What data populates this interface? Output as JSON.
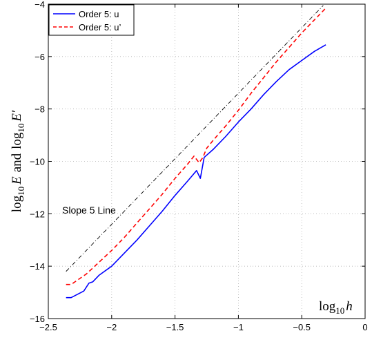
{
  "chart_data": {
    "type": "line",
    "title": "",
    "xlabel": {
      "base": "log",
      "sub": "10",
      "var": "h"
    },
    "ylabel": {
      "part1_base": "log",
      "part1_sub": "10",
      "part1_var": "E",
      "joiner": "and",
      "part2_base": "log",
      "part2_sub": "10",
      "part2_var": "E′"
    },
    "xlim": [
      -2.5,
      0
    ],
    "ylim": [
      -16,
      -4
    ],
    "x_ticks": [
      -2.5,
      -2,
      -1.5,
      -1,
      -0.5,
      0
    ],
    "x_tick_labels": [
      "−2.5",
      "−2",
      "−1.5",
      "−1",
      "−0.5",
      "0"
    ],
    "y_ticks": [
      -16,
      -14,
      -12,
      -10,
      -8,
      -6,
      -4
    ],
    "y_tick_labels": [
      "−16",
      "−14",
      "−12",
      "−10",
      "−8",
      "−6",
      "−4"
    ],
    "grid": true,
    "legend_position": "top-left",
    "series": [
      {
        "name": "Order 5: u",
        "color": "#0000ff",
        "style": "solid",
        "x": [
          -2.36,
          -2.32,
          -2.22,
          -2.18,
          -2.15,
          -2.1,
          -2.0,
          -1.9,
          -1.8,
          -1.7,
          -1.6,
          -1.5,
          -1.4,
          -1.33,
          -1.3,
          -1.27,
          -1.2,
          -1.1,
          -1.0,
          -0.9,
          -0.8,
          -0.7,
          -0.6,
          -0.5,
          -0.4,
          -0.31
        ],
        "y": [
          -15.2,
          -15.2,
          -14.95,
          -14.65,
          -14.6,
          -14.35,
          -14.0,
          -13.5,
          -13.0,
          -12.45,
          -11.9,
          -11.3,
          -10.75,
          -10.35,
          -10.65,
          -9.85,
          -9.55,
          -9.05,
          -8.5,
          -8.0,
          -7.45,
          -6.95,
          -6.5,
          -6.15,
          -5.8,
          -5.55
        ]
      },
      {
        "name": "Order 5: u’",
        "color": "#ff0000",
        "style": "dashed",
        "x": [
          -2.36,
          -2.32,
          -2.2,
          -2.1,
          -2.0,
          -1.9,
          -1.8,
          -1.7,
          -1.6,
          -1.5,
          -1.4,
          -1.35,
          -1.31,
          -1.28,
          -1.25,
          -1.2,
          -1.1,
          -1.0,
          -0.9,
          -0.8,
          -0.7,
          -0.6,
          -0.5,
          -0.4,
          -0.31
        ],
        "y": [
          -14.7,
          -14.7,
          -14.3,
          -13.85,
          -13.4,
          -12.9,
          -12.35,
          -11.8,
          -11.25,
          -10.65,
          -10.1,
          -9.8,
          -10.05,
          -9.85,
          -9.5,
          -9.2,
          -8.65,
          -8.05,
          -7.4,
          -6.8,
          -6.2,
          -5.65,
          -5.1,
          -4.6,
          -4.15
        ]
      }
    ],
    "reference_line": {
      "label": "Slope 5 Line",
      "color": "#000000",
      "style": "dashdot",
      "x": [
        -2.36,
        -0.33
      ],
      "y": [
        -14.2,
        -4.05
      ]
    }
  }
}
